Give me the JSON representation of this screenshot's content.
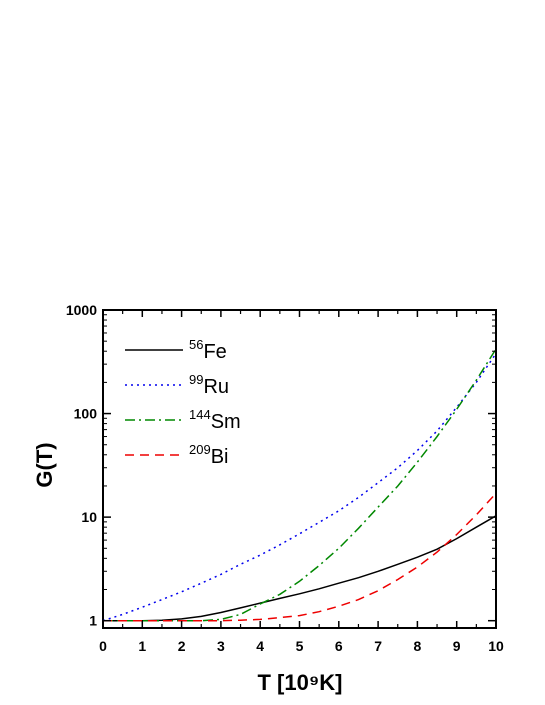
{
  "chart_data": {
    "type": "line",
    "xlabel": "T [10⁹K]",
    "ylabel": "G(T)",
    "xlim": [
      0,
      10
    ],
    "ylim": [
      0.85,
      1000
    ],
    "yscale": "log",
    "grid": false,
    "legend_position": "top-left",
    "x_ticks": [
      "0",
      "1",
      "2",
      "3",
      "4",
      "5",
      "6",
      "7",
      "8",
      "9",
      "10"
    ],
    "y_ticks": [
      {
        "value": 1,
        "label": "1"
      },
      {
        "value": 10,
        "label": "10"
      },
      {
        "value": 100,
        "label": "100"
      },
      {
        "value": 1000,
        "label": "1000"
      }
    ],
    "x": [
      0,
      0.5,
      1,
      1.5,
      2,
      2.5,
      3,
      3.5,
      4,
      4.5,
      5,
      5.5,
      6,
      6.5,
      7,
      7.5,
      8,
      8.5,
      9,
      9.5,
      10
    ],
    "series": [
      {
        "name": "56Fe",
        "mass": "56",
        "symbol": "Fe",
        "color": "#000000",
        "dash": "solid",
        "values": [
          1.0,
          1.0,
          1.0,
          1.01,
          1.04,
          1.1,
          1.2,
          1.33,
          1.48,
          1.64,
          1.82,
          2.03,
          2.3,
          2.6,
          3.0,
          3.5,
          4.1,
          4.9,
          6.2,
          8.0,
          10.3
        ]
      },
      {
        "name": "99Ru",
        "mass": "99",
        "symbol": "Ru",
        "color": "#0000ee",
        "dash": "dotted",
        "values": [
          1.0,
          1.15,
          1.35,
          1.6,
          1.9,
          2.3,
          2.8,
          3.5,
          4.3,
          5.4,
          6.9,
          8.9,
          11.5,
          15.5,
          21.5,
          30.0,
          44.0,
          68.0,
          115.0,
          200.0,
          380.0
        ]
      },
      {
        "name": "144Sm",
        "mass": "144",
        "symbol": "Sm",
        "color": "#008800",
        "dash": "dashdot",
        "values": [
          1.0,
          1.0,
          1.0,
          1.0,
          1.0,
          1.0,
          1.03,
          1.15,
          1.45,
          1.8,
          2.4,
          3.4,
          5.0,
          7.8,
          12.5,
          20.0,
          34.0,
          60.0,
          110.0,
          210.0,
          420.0
        ]
      },
      {
        "name": "209Bi",
        "mass": "209",
        "symbol": "Bi",
        "color": "#ee0000",
        "dash": "dashed",
        "values": [
          1.0,
          1.0,
          1.0,
          1.0,
          1.0,
          1.0,
          1.0,
          1.01,
          1.03,
          1.07,
          1.12,
          1.22,
          1.38,
          1.6,
          1.95,
          2.5,
          3.3,
          4.6,
          6.8,
          10.5,
          17.0
        ]
      }
    ]
  }
}
